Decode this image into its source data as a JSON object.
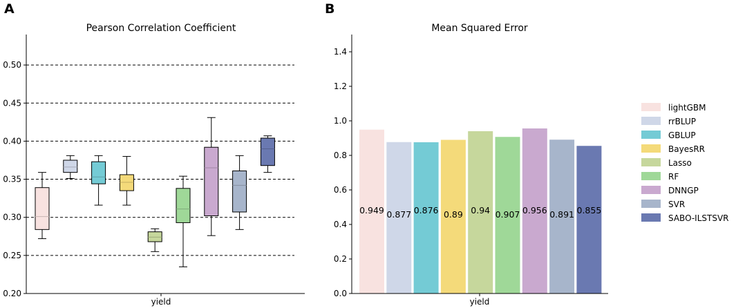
{
  "panels": {
    "a_label": "A",
    "b_label": "B"
  },
  "legend": [
    {
      "name": "lightGBM",
      "color": "#f8e2e0"
    },
    {
      "name": "rrBLUP",
      "color": "#cfd7e8"
    },
    {
      "name": "GBLUP",
      "color": "#74cbd5"
    },
    {
      "name": "BayesRR",
      "color": "#f4da7a"
    },
    {
      "name": "Lasso",
      "color": "#c6d79c"
    },
    {
      "name": "RF",
      "color": "#9fd898"
    },
    {
      "name": "DNNGP",
      "color": "#c9a9cf"
    },
    {
      "name": "SVR",
      "color": "#a7b5cb"
    },
    {
      "name": "SABO-ILSTSVR",
      "color": "#6a79b1"
    }
  ],
  "chart_data": [
    {
      "type": "box",
      "title": "Pearson Correlation Coefficient",
      "xlabel": "yield",
      "ylabel": "",
      "ylim": [
        0.2,
        0.54
      ],
      "yticks": [
        "0.20",
        "0.25",
        "0.30",
        "0.35",
        "0.40",
        "0.45",
        "0.50"
      ],
      "grid_lines": [
        0.25,
        0.3,
        0.35,
        0.4,
        0.45,
        0.5
      ],
      "series": [
        {
          "name": "lightGBM",
          "whisker_low": 0.272,
          "q1": 0.284,
          "median": 0.301,
          "q3": 0.339,
          "whisker_high": 0.359
        },
        {
          "name": "rrBLUP",
          "whisker_low": 0.351,
          "q1": 0.359,
          "median": 0.366,
          "q3": 0.375,
          "whisker_high": 0.381
        },
        {
          "name": "GBLUP",
          "whisker_low": 0.316,
          "q1": 0.344,
          "median": 0.353,
          "q3": 0.373,
          "whisker_high": 0.381
        },
        {
          "name": "BayesRR",
          "whisker_low": 0.316,
          "q1": 0.335,
          "median": 0.346,
          "q3": 0.356,
          "whisker_high": 0.38
        },
        {
          "name": "Lasso",
          "whisker_low": 0.255,
          "q1": 0.268,
          "median": 0.274,
          "q3": 0.281,
          "whisker_high": 0.285
        },
        {
          "name": "RF",
          "whisker_low": 0.235,
          "q1": 0.293,
          "median": 0.311,
          "q3": 0.338,
          "whisker_high": 0.354
        },
        {
          "name": "DNNGP",
          "whisker_low": 0.276,
          "q1": 0.302,
          "median": 0.365,
          "q3": 0.392,
          "whisker_high": 0.431
        },
        {
          "name": "SVR",
          "whisker_low": 0.284,
          "q1": 0.307,
          "median": 0.342,
          "q3": 0.361,
          "whisker_high": 0.381
        },
        {
          "name": "SABO-ILSTSVR",
          "whisker_low": 0.359,
          "q1": 0.368,
          "median": 0.39,
          "q3": 0.404,
          "whisker_high": 0.407
        }
      ]
    },
    {
      "type": "bar",
      "title": "Mean Squared Error",
      "xlabel": "yield",
      "ylabel": "",
      "ylim": [
        0,
        1.5
      ],
      "yticks": [
        "0.0",
        "0.2",
        "0.4",
        "0.6",
        "0.8",
        "1.0",
        "1.2",
        "1.4"
      ],
      "categories": [
        "lightGBM",
        "rrBLUP",
        "GBLUP",
        "BayesRR",
        "Lasso",
        "RF",
        "DNNGP",
        "SVR",
        "SABO-ILSTSVR"
      ],
      "values": [
        0.949,
        0.877,
        0.876,
        0.89,
        0.94,
        0.907,
        0.956,
        0.891,
        0.855
      ],
      "labels": [
        "0.949",
        "0.877",
        "0.876",
        "0.89",
        "0.94",
        "0.907",
        "0.956",
        "0.891",
        "0.855"
      ]
    }
  ]
}
